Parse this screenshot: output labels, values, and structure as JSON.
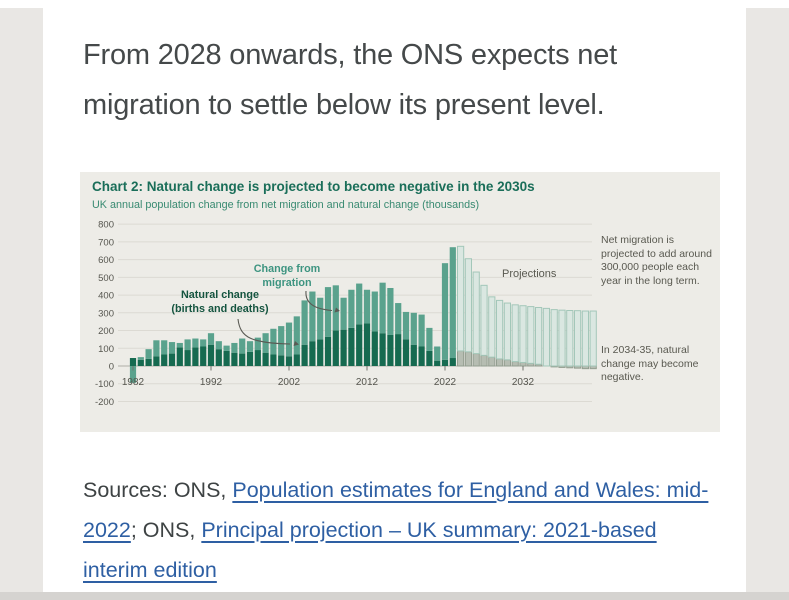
{
  "heading": "From 2028 onwards, the ONS expects net migration to settle below its present level.",
  "chart": {
    "title": "Chart 2: Natural change is projected to become negative in the 2030s",
    "subtitle": "UK annual population change from net migration and natural change (thousands)",
    "labels": {
      "natural_line1": "Natural change",
      "natural_line2": "(births and deaths)",
      "migration_line1": "Change from",
      "migration_line2": "migration",
      "projections": "Projections",
      "note1": "Net migration is projected to add around 300,000 people each year in the long term.",
      "note2": "In 2034-35, natural change may become negative."
    },
    "colors": {
      "panel_bg": "#edece7",
      "title": "#1a6e59",
      "subtitle": "#388a71",
      "natural_actual": "#166a50",
      "migration_actual": "#5aa28d",
      "natural_projected_fill": "#b6bdb2",
      "natural_projected_stroke": "#939e90",
      "migration_projected_fill": "#dae7e1",
      "migration_projected_stroke": "#a3c7b9",
      "gridline": "#dcdad3",
      "zero_line": "#b0aea7",
      "axis_text": "#55554e",
      "natural_label": "#14543f",
      "migration_label": "#3d9480",
      "connector": "#5a5a54",
      "link_blue": "#2e5fa3"
    }
  },
  "chart_data": {
    "type": "bar",
    "stacked": true,
    "title": "Chart 2: Natural change is projected to become negative in the 2030s",
    "subtitle": "UK annual population change from net migration and natural change (thousands)",
    "xlabel": "",
    "ylabel": "thousands",
    "ylim": [
      -200,
      800
    ],
    "y_ticks": [
      800,
      700,
      600,
      500,
      400,
      300,
      200,
      100,
      0,
      -100,
      -200
    ],
    "x_tick_labels": [
      1982,
      1992,
      2002,
      2012,
      2022,
      2032
    ],
    "grid": true,
    "legend_position": "annotations-in-plot",
    "projection_start_year": 2024,
    "x": [
      1982,
      1983,
      1984,
      1985,
      1986,
      1987,
      1988,
      1989,
      1990,
      1991,
      1992,
      1993,
      1994,
      1995,
      1996,
      1997,
      1998,
      1999,
      2000,
      2001,
      2002,
      2003,
      2004,
      2005,
      2006,
      2007,
      2008,
      2009,
      2010,
      2011,
      2012,
      2013,
      2014,
      2015,
      2016,
      2017,
      2018,
      2019,
      2020,
      2021,
      2022,
      2023,
      2024,
      2025,
      2026,
      2027,
      2028,
      2029,
      2030,
      2031,
      2032,
      2033,
      2034,
      2035,
      2036,
      2037,
      2038,
      2039,
      2040,
      2041
    ],
    "series": [
      {
        "name": "Natural change (births and deaths)",
        "values": [
          45,
          35,
          40,
          55,
          65,
          70,
          105,
          90,
          105,
          110,
          120,
          95,
          85,
          75,
          70,
          80,
          90,
          75,
          65,
          60,
          55,
          65,
          120,
          140,
          150,
          165,
          200,
          205,
          215,
          235,
          240,
          195,
          185,
          175,
          180,
          150,
          120,
          110,
          85,
          30,
          35,
          45,
          85,
          80,
          70,
          60,
          50,
          40,
          35,
          25,
          20,
          15,
          10,
          0,
          -5,
          -8,
          -10,
          -12,
          -15,
          -15
        ]
      },
      {
        "name": "Change from migration",
        "values": [
          -95,
          15,
          55,
          90,
          80,
          65,
          25,
          60,
          50,
          40,
          65,
          45,
          30,
          55,
          85,
          60,
          70,
          110,
          145,
          165,
          190,
          215,
          250,
          280,
          235,
          280,
          255,
          180,
          215,
          230,
          190,
          225,
          285,
          265,
          175,
          155,
          180,
          180,
          130,
          80,
          545,
          625,
          590,
          525,
          460,
          395,
          340,
          330,
          320,
          320,
          320,
          320,
          320,
          325,
          318,
          315,
          313,
          312,
          310,
          310
        ]
      }
    ]
  },
  "sources": {
    "prefix1": "Sources: ONS, ",
    "link1": "Population estimates for England and Wales: mid-2022",
    "separator": "; ONS, ",
    "link2": "Principal projection – UK summary: 2021-based interim edition"
  }
}
